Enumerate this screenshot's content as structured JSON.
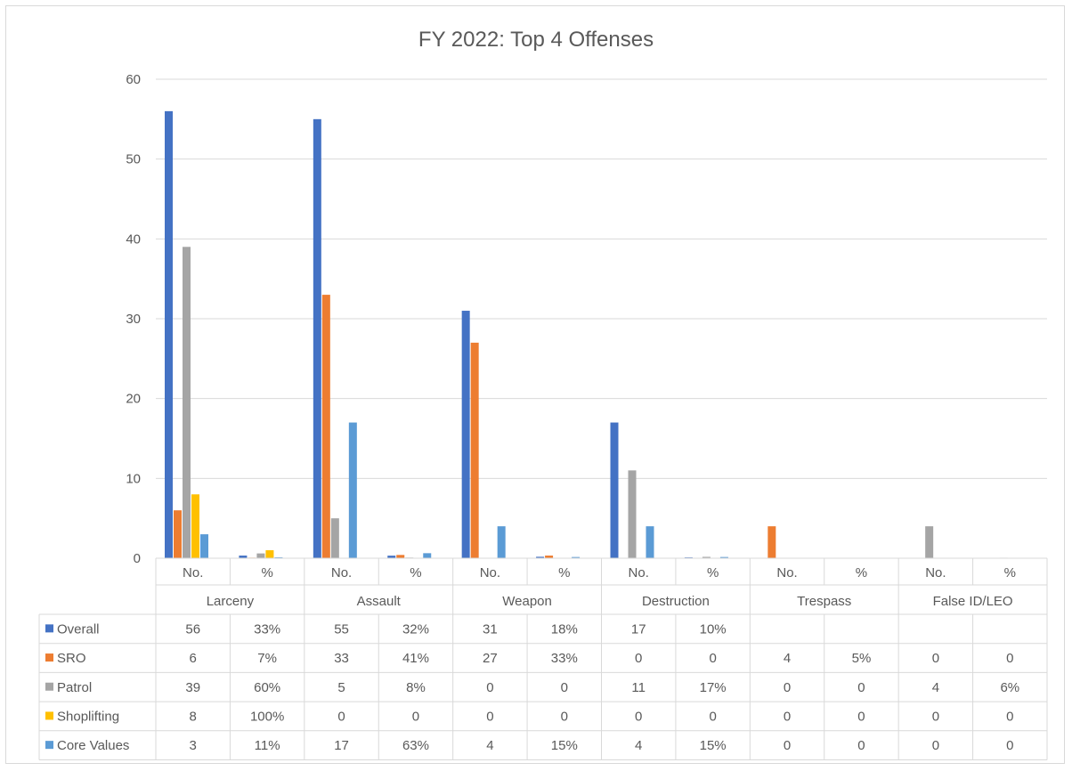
{
  "chart_data": {
    "type": "bar",
    "title": "FY 2022: Top 4 Offenses",
    "ylim": [
      0,
      60
    ],
    "yticks": [
      0,
      10,
      20,
      30,
      40,
      50,
      60
    ],
    "grid": true,
    "legend": "table-left",
    "groups": [
      "Larceny",
      "Assault",
      "Weapon",
      "Destruction",
      "Trespass",
      "False ID/LEO"
    ],
    "subcategories": [
      "No.",
      "%"
    ],
    "categories": [
      "Larceny No.",
      "Larceny %",
      "Assault No.",
      "Assault %",
      "Weapon No.",
      "Weapon %",
      "Destruction No.",
      "Destruction %",
      "Trespass No.",
      "Trespass %",
      "False ID/LEO No.",
      "False ID/LEO %"
    ],
    "series": [
      {
        "name": "Overall",
        "color": "#4472c4",
        "values": [
          56,
          0.33,
          55,
          0.32,
          31,
          0.18,
          17,
          0.1,
          null,
          null,
          null,
          null
        ],
        "labels": [
          "56",
          "33%",
          "55",
          "32%",
          "31",
          "18%",
          "17",
          "10%",
          "",
          "",
          "",
          ""
        ]
      },
      {
        "name": "SRO",
        "color": "#ed7d31",
        "values": [
          6,
          0.07,
          33,
          0.41,
          27,
          0.33,
          0,
          0,
          4,
          0.05,
          0,
          0
        ],
        "labels": [
          "6",
          "7%",
          "33",
          "41%",
          "27",
          "33%",
          "0",
          "0",
          "4",
          "5%",
          "0",
          "0"
        ]
      },
      {
        "name": "Patrol",
        "color": "#a5a5a5",
        "values": [
          39,
          0.6,
          5,
          0.08,
          0,
          0,
          11,
          0.17,
          0,
          0,
          4,
          0.06
        ],
        "labels": [
          "39",
          "60%",
          "5",
          "8%",
          "0",
          "0",
          "11",
          "17%",
          "0",
          "0",
          "4",
          "6%"
        ]
      },
      {
        "name": "Shoplifting",
        "color": "#ffc000",
        "values": [
          8,
          1.0,
          0,
          0,
          0,
          0,
          0,
          0,
          0,
          0,
          0,
          0
        ],
        "labels": [
          "8",
          "100%",
          "0",
          "0",
          "0",
          "0",
          "0",
          "0",
          "0",
          "0",
          "0",
          "0"
        ]
      },
      {
        "name": "Core Values",
        "color": "#5b9bd5",
        "values": [
          3,
          0.11,
          17,
          0.63,
          4,
          0.15,
          4,
          0.15,
          0,
          0,
          0,
          0
        ],
        "labels": [
          "3",
          "11%",
          "17",
          "63%",
          "4",
          "15%",
          "4",
          "15%",
          "0",
          "0",
          "0",
          "0"
        ]
      }
    ]
  }
}
